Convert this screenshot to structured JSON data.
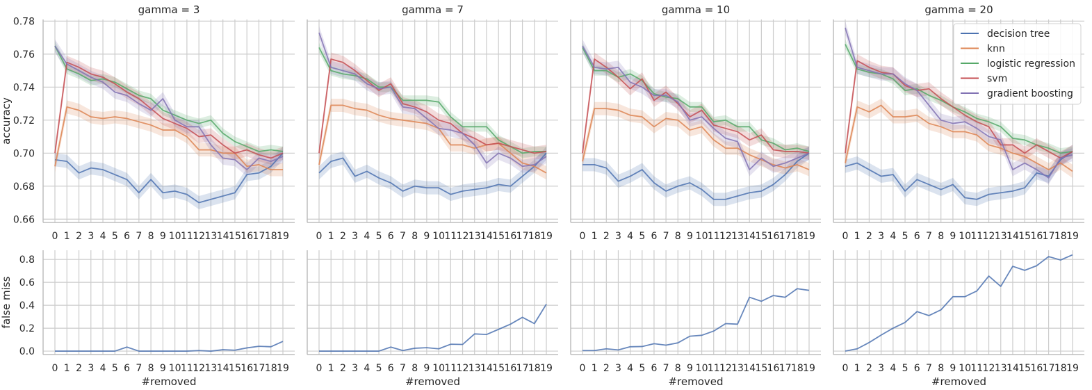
{
  "chart_data": [
    {
      "type": "line",
      "title": "gamma = 3",
      "ylabel": "accuracy",
      "xlabel": "",
      "ylim": [
        0.658,
        0.781
      ],
      "yticks": [
        0.66,
        0.68,
        0.7,
        0.72,
        0.74,
        0.76,
        0.78
      ],
      "x": [
        0,
        1,
        2,
        3,
        4,
        5,
        6,
        7,
        8,
        9,
        10,
        11,
        12,
        13,
        14,
        15,
        16,
        17,
        18,
        19
      ],
      "series": [
        {
          "name": "decision tree",
          "values": [
            0.696,
            0.695,
            0.688,
            0.691,
            0.69,
            0.687,
            0.684,
            0.676,
            0.684,
            0.676,
            0.677,
            0.675,
            0.67,
            0.672,
            0.674,
            0.676,
            0.687,
            0.688,
            0.692,
            0.7
          ],
          "band": 0.004
        },
        {
          "name": "knn",
          "values": [
            0.692,
            0.728,
            0.726,
            0.722,
            0.721,
            0.722,
            0.721,
            0.719,
            0.717,
            0.714,
            0.714,
            0.71,
            0.702,
            0.702,
            0.7,
            0.7,
            0.692,
            0.693,
            0.69,
            0.69
          ],
          "band": 0.004
        },
        {
          "name": "logistic regression",
          "values": [
            0.765,
            0.751,
            0.748,
            0.744,
            0.745,
            0.743,
            0.739,
            0.735,
            0.733,
            0.726,
            0.723,
            0.72,
            0.718,
            0.72,
            0.712,
            0.707,
            0.704,
            0.701,
            0.702,
            0.701
          ],
          "band": 0.003
        },
        {
          "name": "svm",
          "values": [
            0.7,
            0.755,
            0.752,
            0.748,
            0.746,
            0.742,
            0.737,
            0.733,
            0.727,
            0.721,
            0.718,
            0.715,
            0.71,
            0.711,
            0.705,
            0.7,
            0.702,
            0.699,
            0.697,
            0.7
          ],
          "band": 0.004
        },
        {
          "name": "gradient boosting",
          "values": [
            0.765,
            0.754,
            0.75,
            0.746,
            0.743,
            0.737,
            0.735,
            0.73,
            0.726,
            0.733,
            0.72,
            0.716,
            0.716,
            0.705,
            0.697,
            0.696,
            0.69,
            0.697,
            0.695,
            0.698
          ],
          "band": 0.004
        }
      ]
    },
    {
      "type": "line",
      "title": "gamma = 7",
      "ylabel": "",
      "xlabel": "",
      "ylim": [
        0.658,
        0.781
      ],
      "x": [
        0,
        1,
        2,
        3,
        4,
        5,
        6,
        7,
        8,
        9,
        10,
        11,
        12,
        13,
        14,
        15,
        16,
        17,
        18,
        19
      ],
      "series": [
        {
          "name": "decision tree",
          "values": [
            0.688,
            0.695,
            0.697,
            0.686,
            0.689,
            0.685,
            0.682,
            0.677,
            0.68,
            0.679,
            0.679,
            0.675,
            0.677,
            0.678,
            0.679,
            0.681,
            0.68,
            0.686,
            0.692,
            0.7
          ],
          "band": 0.004
        },
        {
          "name": "knn",
          "values": [
            0.693,
            0.729,
            0.729,
            0.727,
            0.726,
            0.723,
            0.721,
            0.72,
            0.719,
            0.718,
            0.715,
            0.705,
            0.705,
            0.703,
            0.705,
            0.706,
            0.7,
            0.694,
            0.692,
            0.688
          ],
          "band": 0.004
        },
        {
          "name": "logistic regression",
          "values": [
            0.764,
            0.75,
            0.748,
            0.747,
            0.745,
            0.74,
            0.74,
            0.732,
            0.732,
            0.732,
            0.731,
            0.722,
            0.716,
            0.716,
            0.716,
            0.708,
            0.704,
            0.7,
            0.701,
            0.701
          ],
          "band": 0.003
        },
        {
          "name": "svm",
          "values": [
            0.7,
            0.757,
            0.755,
            0.75,
            0.744,
            0.738,
            0.742,
            0.73,
            0.728,
            0.725,
            0.72,
            0.718,
            0.712,
            0.709,
            0.705,
            0.706,
            0.704,
            0.702,
            0.7,
            0.701
          ],
          "band": 0.004
        },
        {
          "name": "gradient boosting",
          "values": [
            0.773,
            0.752,
            0.75,
            0.748,
            0.742,
            0.739,
            0.74,
            0.728,
            0.727,
            0.721,
            0.715,
            0.714,
            0.712,
            0.705,
            0.694,
            0.7,
            0.697,
            0.692,
            0.693,
            0.698
          ],
          "band": 0.004
        }
      ]
    },
    {
      "type": "line",
      "title": "gamma = 10",
      "ylabel": "",
      "xlabel": "",
      "ylim": [
        0.658,
        0.781
      ],
      "x": [
        0,
        1,
        2,
        3,
        4,
        5,
        6,
        7,
        8,
        9,
        10,
        11,
        12,
        13,
        14,
        15,
        16,
        17,
        18,
        19
      ],
      "series": [
        {
          "name": "decision tree",
          "values": [
            0.693,
            0.693,
            0.691,
            0.683,
            0.686,
            0.69,
            0.682,
            0.677,
            0.68,
            0.682,
            0.678,
            0.672,
            0.672,
            0.674,
            0.676,
            0.677,
            0.681,
            0.687,
            0.695,
            0.7
          ],
          "band": 0.004
        },
        {
          "name": "knn",
          "values": [
            0.695,
            0.727,
            0.727,
            0.726,
            0.723,
            0.722,
            0.716,
            0.721,
            0.72,
            0.714,
            0.716,
            0.708,
            0.703,
            0.703,
            0.699,
            0.696,
            0.693,
            0.691,
            0.693,
            0.69
          ],
          "band": 0.004
        },
        {
          "name": "logistic regression",
          "values": [
            0.764,
            0.75,
            0.75,
            0.746,
            0.748,
            0.744,
            0.736,
            0.734,
            0.733,
            0.728,
            0.728,
            0.719,
            0.72,
            0.716,
            0.716,
            0.708,
            0.706,
            0.702,
            0.703,
            0.701
          ],
          "band": 0.003
        },
        {
          "name": "svm",
          "values": [
            0.7,
            0.757,
            0.752,
            0.746,
            0.739,
            0.745,
            0.732,
            0.737,
            0.73,
            0.722,
            0.726,
            0.717,
            0.715,
            0.713,
            0.708,
            0.711,
            0.702,
            0.701,
            0.701,
            0.7
          ],
          "band": 0.004
        },
        {
          "name": "gradient boosting",
          "values": [
            0.765,
            0.752,
            0.751,
            0.752,
            0.743,
            0.74,
            0.735,
            0.735,
            0.731,
            0.72,
            0.722,
            0.715,
            0.709,
            0.707,
            0.69,
            0.697,
            0.692,
            0.694,
            0.697,
            0.7
          ],
          "band": 0.004
        }
      ]
    },
    {
      "type": "line",
      "title": "gamma = 20",
      "ylabel": "",
      "xlabel": "",
      "ylim": [
        0.658,
        0.781
      ],
      "legend": "top-right",
      "x": [
        0,
        1,
        2,
        3,
        4,
        5,
        6,
        7,
        8,
        9,
        10,
        11,
        12,
        13,
        14,
        15,
        16,
        17,
        18,
        19
      ],
      "series": [
        {
          "name": "decision tree",
          "values": [
            0.692,
            0.694,
            0.69,
            0.686,
            0.687,
            0.677,
            0.684,
            0.681,
            0.678,
            0.681,
            0.673,
            0.672,
            0.675,
            0.676,
            0.677,
            0.679,
            0.688,
            0.686,
            0.696,
            0.701
          ],
          "band": 0.004
        },
        {
          "name": "knn",
          "values": [
            0.694,
            0.728,
            0.725,
            0.729,
            0.722,
            0.722,
            0.723,
            0.718,
            0.716,
            0.713,
            0.713,
            0.711,
            0.705,
            0.703,
            0.7,
            0.698,
            0.694,
            0.69,
            0.694,
            0.689
          ],
          "band": 0.004
        },
        {
          "name": "logistic regression",
          "values": [
            0.766,
            0.751,
            0.749,
            0.748,
            0.745,
            0.738,
            0.739,
            0.735,
            0.732,
            0.728,
            0.725,
            0.721,
            0.719,
            0.716,
            0.709,
            0.708,
            0.705,
            0.703,
            0.7,
            0.701
          ],
          "band": 0.003
        },
        {
          "name": "svm",
          "values": [
            0.7,
            0.756,
            0.752,
            0.749,
            0.748,
            0.741,
            0.738,
            0.739,
            0.733,
            0.728,
            0.723,
            0.719,
            0.716,
            0.705,
            0.705,
            0.7,
            0.705,
            0.701,
            0.697,
            0.701
          ],
          "band": 0.004
        },
        {
          "name": "gradient boosting",
          "values": [
            0.776,
            0.752,
            0.75,
            0.748,
            0.748,
            0.742,
            0.738,
            0.729,
            0.72,
            0.718,
            0.719,
            0.715,
            0.71,
            0.708,
            0.69,
            0.694,
            0.69,
            0.685,
            0.697,
            0.699
          ],
          "band": 0.004
        }
      ]
    },
    {
      "type": "line",
      "title": "",
      "ylabel": "false miss",
      "xlabel": "#removed",
      "ylim": [
        -0.03,
        0.88
      ],
      "yticks": [
        0.0,
        0.2,
        0.4,
        0.6,
        0.8
      ],
      "x": [
        0,
        1,
        2,
        3,
        4,
        5,
        6,
        7,
        8,
        9,
        10,
        11,
        12,
        13,
        14,
        15,
        16,
        17,
        18,
        19
      ],
      "series": [
        {
          "name": "decision tree",
          "values": [
            0,
            0,
            0,
            0,
            0,
            0,
            0.035,
            0,
            0,
            0,
            0,
            0,
            0.005,
            0,
            0.012,
            0.008,
            0.028,
            0.042,
            0.038,
            0.085
          ]
        }
      ]
    },
    {
      "type": "line",
      "title": "",
      "ylabel": "",
      "xlabel": "#removed",
      "ylim": [
        -0.03,
        0.88
      ],
      "x": [
        0,
        1,
        2,
        3,
        4,
        5,
        6,
        7,
        8,
        9,
        10,
        11,
        12,
        13,
        14,
        15,
        16,
        17,
        18,
        19
      ],
      "series": [
        {
          "name": "decision tree",
          "values": [
            0,
            0,
            0,
            0,
            0,
            0,
            0.035,
            0.005,
            0.025,
            0.03,
            0.02,
            0.06,
            0.058,
            0.15,
            0.145,
            0.19,
            0.235,
            0.295,
            0.24,
            0.41
          ]
        }
      ]
    },
    {
      "type": "line",
      "title": "",
      "ylabel": "",
      "xlabel": "#removed",
      "ylim": [
        -0.03,
        0.88
      ],
      "x": [
        0,
        1,
        2,
        3,
        4,
        5,
        6,
        7,
        8,
        9,
        10,
        11,
        12,
        13,
        14,
        15,
        16,
        17,
        18,
        19
      ],
      "series": [
        {
          "name": "decision tree",
          "values": [
            0.005,
            0.005,
            0.02,
            0.01,
            0.038,
            0.04,
            0.065,
            0.052,
            0.072,
            0.13,
            0.138,
            0.175,
            0.24,
            0.235,
            0.47,
            0.435,
            0.485,
            0.47,
            0.545,
            0.53
          ]
        }
      ]
    },
    {
      "type": "line",
      "title": "",
      "ylabel": "",
      "xlabel": "#removed",
      "ylim": [
        -0.03,
        0.88
      ],
      "x": [
        0,
        1,
        2,
        3,
        4,
        5,
        6,
        7,
        8,
        9,
        10,
        11,
        12,
        13,
        14,
        15,
        16,
        17,
        18,
        19
      ],
      "series": [
        {
          "name": "decision tree",
          "values": [
            0,
            0.02,
            0.075,
            0.14,
            0.2,
            0.25,
            0.345,
            0.31,
            0.36,
            0.475,
            0.475,
            0.525,
            0.655,
            0.565,
            0.74,
            0.705,
            0.745,
            0.825,
            0.795,
            0.84
          ]
        }
      ]
    }
  ],
  "colors": {
    "decision tree": "#4c72b0",
    "knn": "#dd8452",
    "logistic regression": "#55a868",
    "svm": "#c44e52",
    "gradient boosting": "#8172b3",
    "grid": "#cccccc",
    "axis": "#bdbdbd"
  }
}
